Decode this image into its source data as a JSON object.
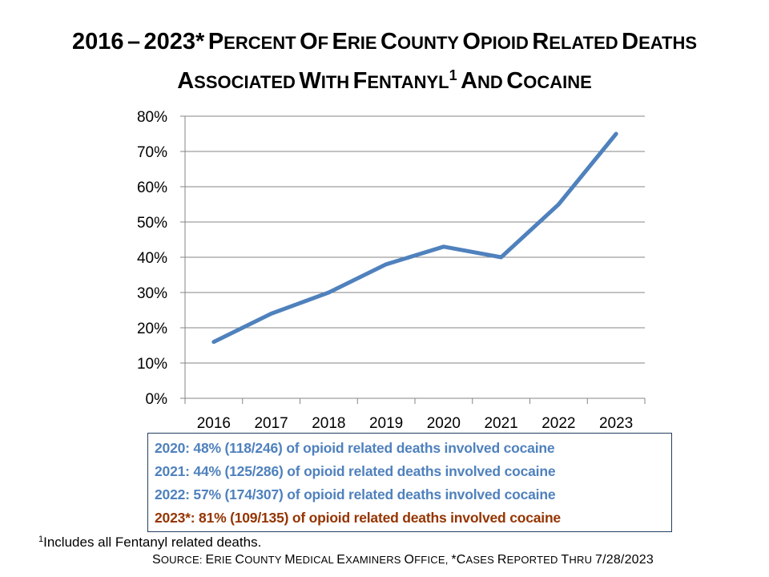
{
  "title": {
    "line1": "2016 – 2023* Percent of Erie County Opioid Related Deaths",
    "line2_pre": "Associated with Fentanyl",
    "line2_sup": "1",
    "line2_post": " and Cocaine"
  },
  "chart_data": {
    "type": "line",
    "title": "2016 – 2023* Percent of Erie County Opioid Related Deaths Associated with Fentanyl¹ and Cocaine",
    "xlabel": "",
    "ylabel": "",
    "categories": [
      "2016",
      "2017",
      "2018",
      "2019",
      "2020",
      "2021",
      "2022",
      "2023"
    ],
    "series": [
      {
        "name": "Fentanyl and Cocaine",
        "values": [
          16,
          24,
          30,
          38,
          43,
          40,
          55,
          75
        ],
        "color": "#4f81bd"
      }
    ],
    "ylim": [
      0,
      80
    ],
    "yticks": [
      0,
      10,
      20,
      30,
      40,
      50,
      60,
      70,
      80
    ],
    "ytick_labels": [
      "0%",
      "10%",
      "20%",
      "30%",
      "40%",
      "50%",
      "60%",
      "70%",
      "80%"
    ],
    "grid": true,
    "legend": "none"
  },
  "notes": [
    {
      "text": "2020: 48% (118/246)  of opioid related deaths involved cocaine",
      "color": "#4f81bd"
    },
    {
      "text": "2021: 44% (125/286)  of opioid related deaths involved cocaine",
      "color": "#4f81bd"
    },
    {
      "text": "2022: 57% (174/307)  of opioid related deaths involved cocaine",
      "color": "#4f81bd"
    },
    {
      "text": "2023*: 81% (109/135)  of opioid related deaths involved cocaine",
      "color": "#953502"
    }
  ],
  "footnote": {
    "sup": "1",
    "text": "Includes all Fentanyl related deaths."
  },
  "source": "Source: Erie County Medical Examiners Office, *Cases Reported thru 7/28/2023"
}
